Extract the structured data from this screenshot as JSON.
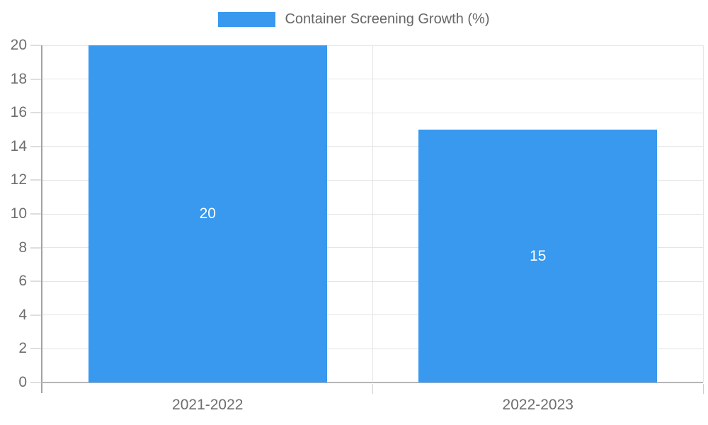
{
  "chart_data": {
    "type": "bar",
    "title": "Container Screening Growth (%)",
    "categories": [
      "2021-2022",
      "2022-2023"
    ],
    "values": [
      20,
      15
    ],
    "value_labels": [
      "20",
      "15"
    ],
    "xlabel": "",
    "ylabel": "",
    "ylim": [
      0,
      20
    ],
    "yticks": [
      0,
      2,
      4,
      6,
      8,
      10,
      12,
      14,
      16,
      18,
      20
    ],
    "ytick_labels": [
      "0",
      "2",
      "4",
      "6",
      "8",
      "10",
      "12",
      "14",
      "16",
      "18",
      "20"
    ],
    "grid": true,
    "legend_position": "top",
    "bar_color": "#3899ee",
    "bar_label_color": "#ffffff",
    "axis_text_color": "#6e6e6e",
    "legend_text_color": "#666666"
  }
}
